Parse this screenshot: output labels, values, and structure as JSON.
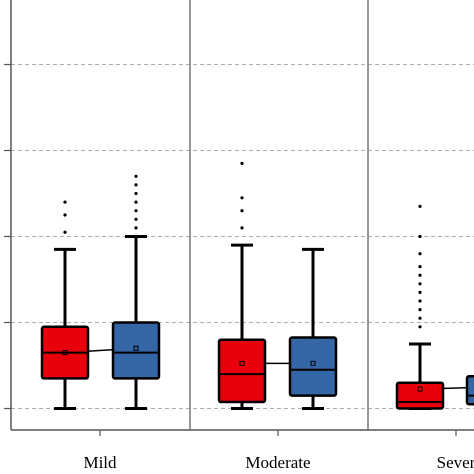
{
  "chart_data": {
    "type": "box",
    "categories": [
      "Mild",
      "Moderate",
      "Severe"
    ],
    "category_labels_visible": [
      "Mild",
      "Moderate",
      "Sever"
    ],
    "series": [
      {
        "color": "#e8000b"
      },
      {
        "color": "#3465a4"
      }
    ],
    "ylim": [
      -0.5,
      9.5
    ],
    "yticks": [
      0,
      2,
      4,
      6,
      8
    ],
    "grid": "horizontal dashed",
    "legend": "none",
    "groups": [
      {
        "category": "Mild",
        "boxes": [
          {
            "series": 0,
            "min": 0,
            "q1": 0.7,
            "median": 1.3,
            "q3": 1.9,
            "max": 3.7,
            "mean": 1.3,
            "outliers": [
              4.1,
              4.5,
              4.8
            ]
          },
          {
            "series": 1,
            "min": 0,
            "q1": 0.7,
            "median": 1.3,
            "q3": 2.0,
            "max": 4.0,
            "mean": 1.4,
            "outliers": [
              4.2,
              4.4,
              4.6,
              4.8,
              5.0,
              5.2,
              5.4
            ]
          }
        ]
      },
      {
        "category": "Moderate",
        "boxes": [
          {
            "series": 0,
            "min": 0,
            "q1": 0.15,
            "median": 0.8,
            "q3": 1.6,
            "max": 3.8,
            "mean": 1.05,
            "outliers": [
              4.2,
              4.6,
              4.9,
              5.7
            ]
          }
        ]
      },
      {
        "category": "Moderate",
        "boxes": [
          {
            "series": 1,
            "min": 0,
            "q1": 0.3,
            "median": 0.9,
            "q3": 1.65,
            "max": 3.7,
            "mean": 1.05,
            "outliers": []
          }
        ]
      },
      {
        "category": "Severe",
        "boxes": [
          {
            "series": 0,
            "min": 0,
            "q1": 0.0,
            "median": 0.15,
            "q3": 0.6,
            "max": 1.5,
            "mean": 0.45,
            "outliers": [
              1.9,
              2.1,
              2.3,
              2.5,
              2.7,
              2.9,
              3.1,
              3.3,
              3.6,
              4.0,
              4.7
            ]
          },
          {
            "series": 1,
            "min": 0,
            "q1": 0.1,
            "median": 0.3,
            "q3": 0.75,
            "max": 1.5,
            "mean": 0.5,
            "outliers": []
          }
        ]
      }
    ]
  }
}
